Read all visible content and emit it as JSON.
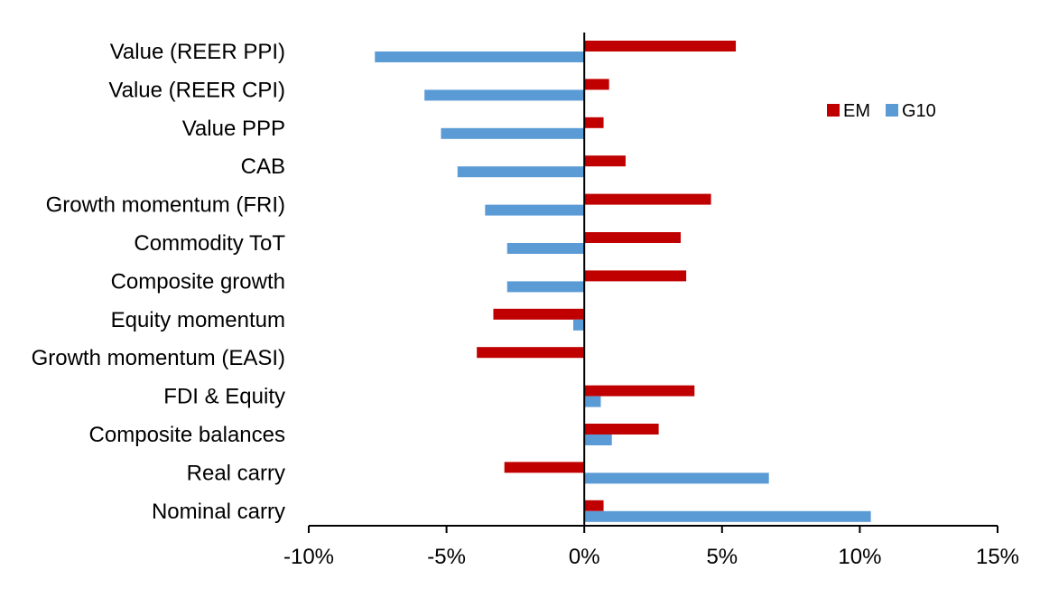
{
  "chart_data": {
    "type": "bar",
    "orientation": "horizontal",
    "categories": [
      "Value (REER PPI)",
      "Value (REER CPI)",
      "Value PPP",
      "CAB",
      "Growth momentum (FRI)",
      "Commodity ToT",
      "Composite growth",
      "Equity momentum",
      "Growth momentum (EASI)",
      "FDI & Equity",
      "Composite balances",
      "Real carry",
      "Nominal carry"
    ],
    "series": [
      {
        "name": "EM",
        "color": "#c00000",
        "values": [
          5.5,
          0.9,
          0.7,
          1.5,
          4.6,
          3.5,
          3.7,
          -3.3,
          -3.9,
          4.0,
          2.7,
          -2.9,
          0.7
        ]
      },
      {
        "name": "G10",
        "color": "#5b9bd5",
        "values": [
          -7.6,
          -5.8,
          -5.2,
          -4.6,
          -3.6,
          -2.8,
          -2.8,
          -0.4,
          0.0,
          0.6,
          1.0,
          6.7,
          10.4
        ]
      }
    ],
    "xlim": [
      -10,
      15
    ],
    "x_ticks": [
      "-10%",
      "-5%",
      "0%",
      "5%",
      "10%",
      "15%"
    ],
    "x_tick_values": [
      -10,
      -5,
      0,
      5,
      10,
      15
    ],
    "title": "",
    "xlabel": "",
    "ylabel": "",
    "legend_position": "top-right",
    "grid": false
  }
}
